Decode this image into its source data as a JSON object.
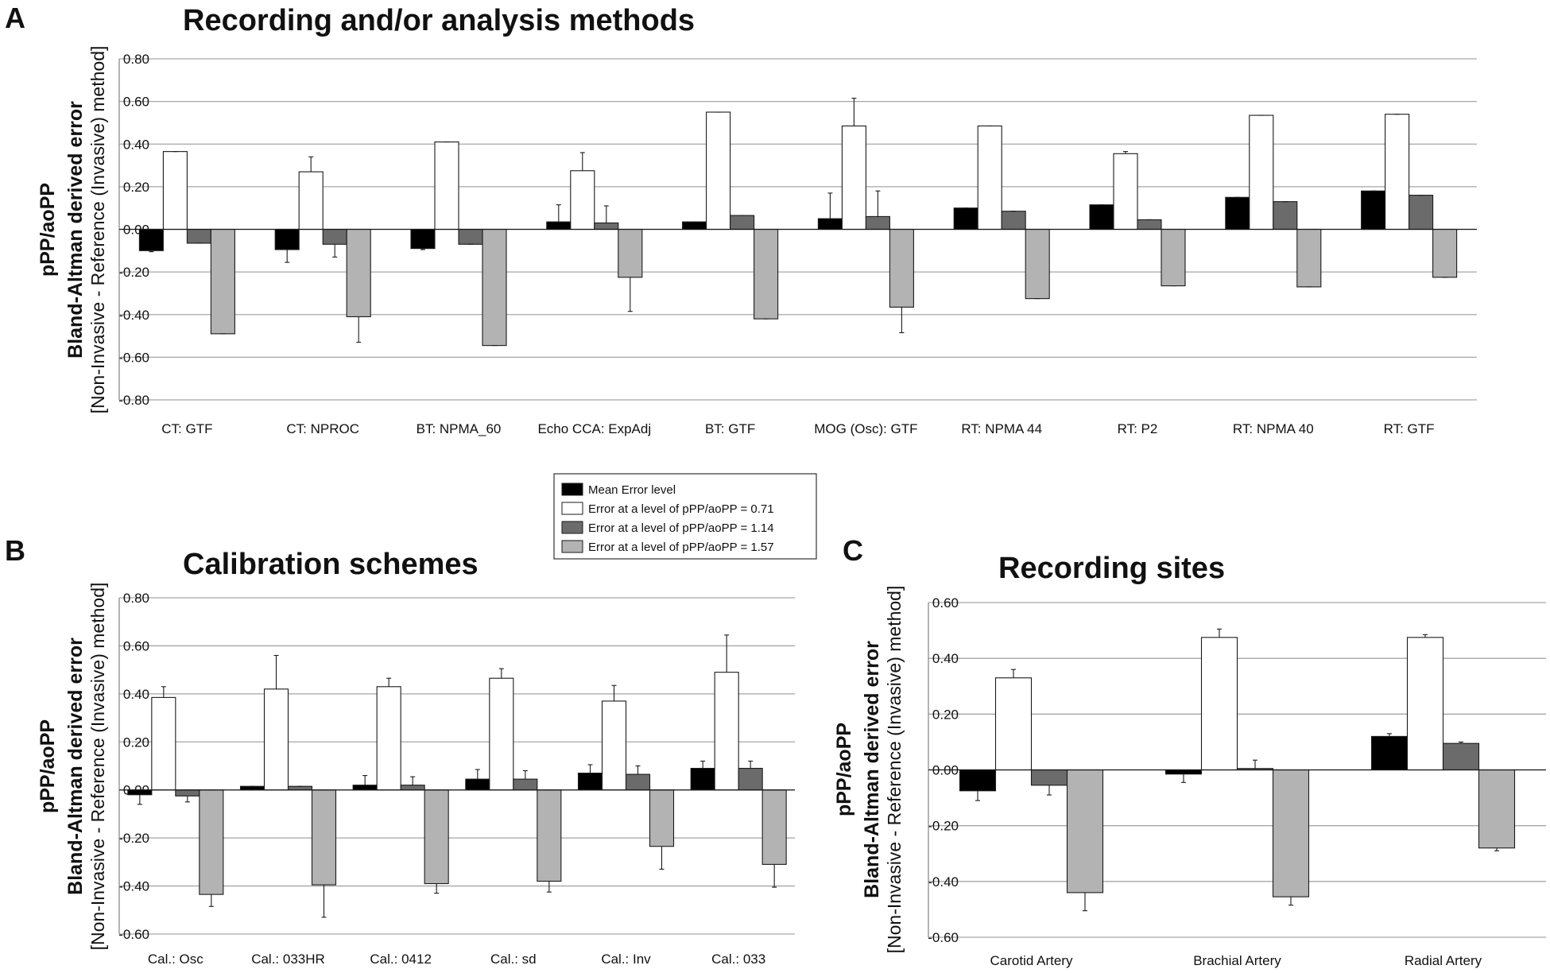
{
  "legend": {
    "entries": [
      {
        "label": "Mean Error level",
        "color": "#000000"
      },
      {
        "label": "Error at a level of pPP/aoPP = 0.71",
        "color": "#ffffff"
      },
      {
        "label": "Error at a level of pPP/aoPP = 1.14",
        "color": "#6b6b6b"
      },
      {
        "label": "Error at a level of pPP/aoPP = 1.57",
        "color": "#b3b3b3"
      }
    ]
  },
  "chart_data": [
    {
      "type": "bar",
      "panel": "A",
      "title": "Recording and/or analysis methods",
      "ylabel_line1": "pPP/aoPP",
      "ylabel_line2": "Bland-Altman derived error",
      "ylabel_line3": "[Non-Invasive - Reference (Invasive) method]",
      "ylim": [
        -0.8,
        0.8
      ],
      "yticks": [
        "0.80",
        "0.60",
        "0.40",
        "0.20",
        "0.00",
        "-0.20",
        "-0.40",
        "-0.60",
        "-0.80"
      ],
      "categories": [
        "CT: GTF",
        "CT: NPROC",
        "BT: NPMA_60",
        "Echo CCA: ExpAdj",
        "BT: GTF",
        "MOG (Osc): GTF",
        "RT: NPMA 44",
        "RT: P2",
        "RT: NPMA 40",
        "RT: GTF"
      ],
      "series": [
        {
          "name": "Mean Error level",
          "values": [
            -0.1,
            -0.095,
            -0.09,
            0.035,
            0.035,
            0.05,
            0.1,
            0.115,
            0.15,
            0.18
          ],
          "errors": [
            0.005,
            0.06,
            0.005,
            0.08,
            0.0,
            0.12,
            0.0,
            0.0,
            0.0,
            0.0
          ]
        },
        {
          "name": "Error at a level of pPP/aoPP = 0.71",
          "values": [
            0.365,
            0.27,
            0.41,
            0.275,
            0.55,
            0.485,
            0.485,
            0.355,
            0.535,
            0.54
          ],
          "errors": [
            0.0,
            0.07,
            0.0,
            0.085,
            0.0,
            0.13,
            0.0,
            0.01,
            0.0,
            0.0
          ]
        },
        {
          "name": "Error at a level of pPP/aoPP = 1.14",
          "values": [
            -0.065,
            -0.07,
            -0.07,
            0.03,
            0.065,
            0.06,
            0.085,
            0.045,
            0.13,
            0.16
          ],
          "errors": [
            0.0,
            0.06,
            0.0,
            0.08,
            0.0,
            0.12,
            0.0,
            0.0,
            0.0,
            0.0
          ]
        },
        {
          "name": "Error at a level of pPP/aoPP = 1.57",
          "values": [
            -0.49,
            -0.41,
            -0.545,
            -0.225,
            -0.42,
            -0.365,
            -0.325,
            -0.265,
            -0.27,
            -0.225
          ],
          "errors": [
            0.0,
            0.12,
            0.0,
            0.16,
            0.0,
            0.12,
            0.0,
            0.0,
            0.0,
            0.0
          ]
        }
      ]
    },
    {
      "type": "bar",
      "panel": "B",
      "title": "Calibration schemes",
      "ylabel_line1": "pPP/aoPP",
      "ylabel_line2": "Bland-Altman derived error",
      "ylabel_line3": "[Non-Invasive - Reference (Invasive) method]",
      "ylim": [
        -0.6,
        0.8
      ],
      "yticks": [
        "0.80",
        "0.60",
        "0.40",
        "0.20",
        "0.00",
        "-0.20",
        "-0.40",
        "-0.60"
      ],
      "categories": [
        "Cal.: Osc",
        "Cal.: 033HR",
        "Cal.: 0412",
        "Cal.: sd",
        "Cal.: Inv",
        "Cal.: 033"
      ],
      "series": [
        {
          "name": "Mean Error level",
          "values": [
            -0.02,
            0.015,
            0.02,
            0.045,
            0.07,
            0.09
          ],
          "errors": [
            0.04,
            0.0,
            0.04,
            0.04,
            0.035,
            0.03
          ]
        },
        {
          "name": "Error at a level of pPP/aoPP = 0.71",
          "values": [
            0.385,
            0.42,
            0.43,
            0.465,
            0.37,
            0.49
          ],
          "errors": [
            0.045,
            0.14,
            0.035,
            0.04,
            0.065,
            0.155
          ]
        },
        {
          "name": "Error at a level of pPP/aoPP = 1.14",
          "values": [
            -0.025,
            0.015,
            0.02,
            0.045,
            0.065,
            0.09
          ],
          "errors": [
            0.025,
            0.0,
            0.035,
            0.035,
            0.035,
            0.03
          ]
        },
        {
          "name": "Error at a level of pPP/aoPP = 1.57",
          "values": [
            -0.435,
            -0.395,
            -0.39,
            -0.38,
            -0.235,
            -0.31
          ],
          "errors": [
            0.05,
            0.135,
            0.04,
            0.045,
            0.095,
            0.095
          ]
        }
      ]
    },
    {
      "type": "bar",
      "panel": "C",
      "title": "Recording sites",
      "ylabel_line1": "pPP/aoPP",
      "ylabel_line2": "Bland-Altman derived error",
      "ylabel_line3": "[Non-Invasive - Reference (Invasive) method]",
      "ylim": [
        -0.6,
        0.6
      ],
      "yticks": [
        "0.60",
        "0.40",
        "0.20",
        "0.00",
        "-0.20",
        "-0.40",
        "-0.60"
      ],
      "categories": [
        "Carotid Artery",
        "Brachial Artery",
        "Radial Artery"
      ],
      "series": [
        {
          "name": "Mean Error level",
          "values": [
            -0.075,
            -0.015,
            0.12
          ],
          "errors": [
            0.035,
            0.03,
            0.01
          ]
        },
        {
          "name": "Error at a level of pPP/aoPP = 0.71",
          "values": [
            0.33,
            0.475,
            0.475
          ],
          "errors": [
            0.03,
            0.03,
            0.01
          ]
        },
        {
          "name": "Error at a level of pPP/aoPP = 1.14",
          "values": [
            -0.055,
            0.005,
            0.095
          ],
          "errors": [
            0.035,
            0.03,
            0.005
          ]
        },
        {
          "name": "Error at a level of pPP/aoPP = 1.57",
          "values": [
            -0.44,
            -0.455,
            -0.28
          ],
          "errors": [
            0.065,
            0.03,
            0.01
          ]
        }
      ]
    }
  ]
}
